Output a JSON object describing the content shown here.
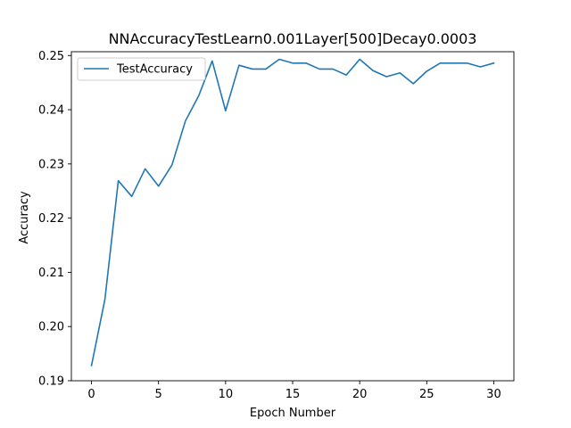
{
  "chart_data": {
    "type": "line",
    "title": "NNAccuracyTestLearn0.001Layer[500]Decay0.0003",
    "xlabel": "Epoch Number",
    "ylabel": "Accuracy",
    "xlim": [
      -1.5,
      31.5
    ],
    "ylim": [
      0.19,
      0.2507
    ],
    "xticks": [
      0,
      5,
      10,
      15,
      20,
      25,
      30
    ],
    "xtick_labels": [
      "0",
      "5",
      "10",
      "15",
      "20",
      "25",
      "30"
    ],
    "yticks": [
      0.19,
      0.2,
      0.21,
      0.22,
      0.23,
      0.24,
      0.25
    ],
    "ytick_labels": [
      "0.19",
      "0.20",
      "0.21",
      "0.22",
      "0.23",
      "0.24",
      "0.25"
    ],
    "grid": false,
    "legend": {
      "placement": "top-left"
    },
    "series": [
      {
        "name": "TestAccuracy",
        "color": "#1f77b4",
        "x": [
          0,
          1,
          2,
          3,
          4,
          5,
          6,
          7,
          8,
          9,
          10,
          11,
          12,
          13,
          14,
          15,
          16,
          17,
          18,
          19,
          20,
          21,
          22,
          23,
          24,
          25,
          26,
          27,
          28,
          29,
          30
        ],
        "y": [
          0.1928,
          0.205,
          0.2269,
          0.224,
          0.2291,
          0.2259,
          0.2298,
          0.2379,
          0.2426,
          0.249,
          0.2398,
          0.2482,
          0.2475,
          0.2475,
          0.2493,
          0.2486,
          0.2486,
          0.2475,
          0.2475,
          0.2464,
          0.2493,
          0.2472,
          0.2461,
          0.2468,
          0.2448,
          0.2471,
          0.2486,
          0.2486,
          0.2486,
          0.2479,
          0.2486
        ]
      }
    ]
  }
}
